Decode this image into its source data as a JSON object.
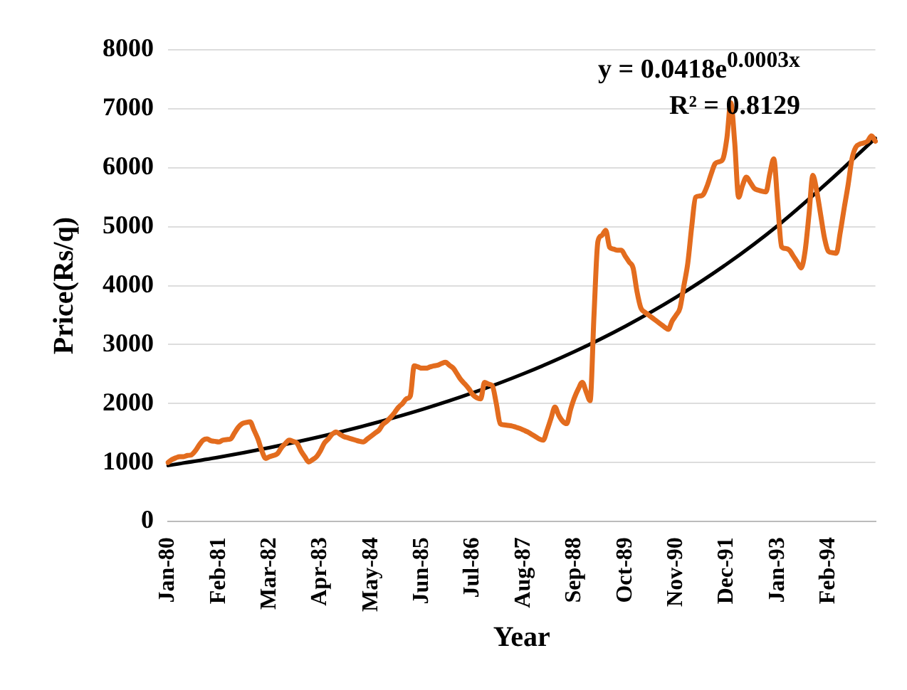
{
  "chart_data": {
    "type": "line",
    "xlabel": "Year",
    "ylabel": "Price(Rs/q)",
    "annotations": [
      "y = 0.0418e$^{0.0003x}$",
      "R² = 0.8129"
    ],
    "categories": [
      "Jan-80",
      null,
      null,
      null,
      null,
      null,
      null,
      null,
      null,
      null,
      null,
      null,
      null,
      "Feb-81",
      null,
      null,
      null,
      null,
      null,
      null,
      null,
      null,
      null,
      null,
      null,
      null,
      "Mar-82",
      null,
      null,
      null,
      null,
      null,
      null,
      null,
      null,
      null,
      null,
      null,
      null,
      "Apr-83",
      null,
      null,
      null,
      null,
      null,
      null,
      null,
      null,
      null,
      null,
      null,
      null,
      "May-84",
      null,
      null,
      null,
      null,
      null,
      null,
      null,
      null,
      null,
      null,
      null,
      null,
      "Jun-85",
      null,
      null,
      null,
      null,
      null,
      null,
      null,
      null,
      null,
      null,
      null,
      null,
      "Jul-86",
      null,
      null,
      null,
      null,
      null,
      null,
      null,
      null,
      null,
      null,
      null,
      null,
      "Aug-87",
      null,
      null,
      null,
      null,
      null,
      null,
      null,
      null,
      null,
      null,
      null,
      null,
      "Sep-88",
      null,
      null,
      null,
      null,
      null,
      null,
      null,
      null,
      null,
      null,
      null,
      null,
      "Oct-89",
      null,
      null,
      null,
      null,
      null,
      null,
      null,
      null,
      null,
      null,
      null,
      null,
      "Nov-90",
      null,
      null,
      null,
      null,
      null,
      null,
      null,
      null,
      null,
      null,
      null,
      null,
      "Dec-91",
      null,
      null,
      null,
      null,
      null,
      null,
      null,
      null,
      null,
      null,
      null,
      null,
      "Jan-93",
      null,
      null,
      null,
      null,
      null,
      null,
      null,
      null,
      null,
      null,
      null,
      null,
      "Feb-94",
      null,
      null,
      null,
      null,
      null,
      null,
      null,
      null,
      null,
      null,
      null,
      null
    ],
    "series": [
      {
        "color": "#e36c1e",
        "values": [
          1000,
          1050,
          1080,
          1100,
          1100,
          1120,
          1130,
          1200,
          1300,
          1380,
          1400,
          1370,
          1360,
          1350,
          1380,
          1390,
          1400,
          1500,
          1600,
          1660,
          1680,
          1690,
          1550,
          1400,
          1200,
          1070,
          1100,
          1120,
          1150,
          1250,
          1320,
          1380,
          1360,
          1330,
          1200,
          1100,
          1010,
          1050,
          1100,
          1200,
          1330,
          1400,
          1480,
          1520,
          1480,
          1440,
          1420,
          1400,
          1380,
          1360,
          1350,
          1400,
          1450,
          1500,
          1550,
          1650,
          1700,
          1770,
          1850,
          1940,
          2000,
          2080,
          2130,
          2640,
          2620,
          2600,
          2600,
          2620,
          2640,
          2650,
          2680,
          2700,
          2650,
          2600,
          2500,
          2400,
          2330,
          2250,
          2150,
          2100,
          2080,
          2360,
          2330,
          2300,
          2000,
          1660,
          1640,
          1630,
          1620,
          1600,
          1580,
          1550,
          1520,
          1480,
          1440,
          1400,
          1380,
          1550,
          1750,
          1940,
          1800,
          1700,
          1660,
          1900,
          2100,
          2250,
          2360,
          2200,
          2050,
          3500,
          4750,
          4850,
          4940,
          4650,
          4620,
          4600,
          4600,
          4500,
          4400,
          4300,
          3900,
          3620,
          3550,
          3500,
          3450,
          3400,
          3350,
          3300,
          3260,
          3400,
          3500,
          3620,
          4000,
          4380,
          5000,
          5500,
          5520,
          5550,
          5700,
          5900,
          6070,
          6100,
          6150,
          6500,
          7100,
          6430,
          5500,
          5700,
          5840,
          5750,
          5650,
          5620,
          5600,
          5590,
          5900,
          6150,
          5400,
          4660,
          4630,
          4600,
          4500,
          4400,
          4300,
          4580,
          5200,
          5870,
          5600,
          5200,
          4800,
          4580,
          4560,
          4550,
          4900,
          5310,
          5700,
          6150,
          6350,
          6400,
          6420,
          6450,
          6540,
          6450
        ]
      },
      {
        "type": "line",
        "color": "#000000",
        "values": [
          950,
          null,
          null,
          null,
          null,
          null,
          null,
          null,
          null,
          null,
          null,
          null,
          null,
          1091,
          null,
          null,
          null,
          null,
          null,
          null,
          null,
          null,
          null,
          null,
          null,
          null,
          1254,
          null,
          null,
          null,
          null,
          null,
          null,
          null,
          null,
          null,
          null,
          null,
          null,
          1440,
          null,
          null,
          null,
          null,
          null,
          null,
          null,
          null,
          null,
          null,
          null,
          null,
          1654,
          null,
          null,
          null,
          null,
          null,
          null,
          null,
          null,
          null,
          null,
          null,
          null,
          1900,
          null,
          null,
          null,
          null,
          null,
          null,
          null,
          null,
          null,
          null,
          null,
          null,
          2183,
          null,
          null,
          null,
          null,
          null,
          null,
          null,
          null,
          null,
          null,
          null,
          null,
          2508,
          null,
          null,
          null,
          null,
          null,
          null,
          null,
          null,
          null,
          null,
          null,
          null,
          2881,
          null,
          null,
          null,
          null,
          null,
          null,
          null,
          null,
          null,
          null,
          null,
          null,
          3310,
          null,
          null,
          null,
          null,
          null,
          null,
          null,
          null,
          null,
          null,
          null,
          null,
          3802,
          null,
          null,
          null,
          null,
          null,
          null,
          null,
          null,
          null,
          null,
          null,
          null,
          4368,
          null,
          null,
          null,
          null,
          null,
          null,
          null,
          null,
          null,
          null,
          null,
          null,
          5018,
          null,
          null,
          null,
          null,
          null,
          null,
          null,
          null,
          null,
          null,
          null,
          null,
          5764,
          null,
          null,
          null,
          null,
          null,
          null,
          null,
          null,
          null,
          null,
          null,
          6500
        ]
      }
    ],
    "ylim": [
      0,
      8000
    ],
    "yticks": [
      0,
      1000,
      2000,
      3000,
      4000,
      5000,
      6000,
      7000,
      8000
    ],
    "grid": "y",
    "legend": false,
    "marker": "none",
    "line_style": "solid"
  }
}
